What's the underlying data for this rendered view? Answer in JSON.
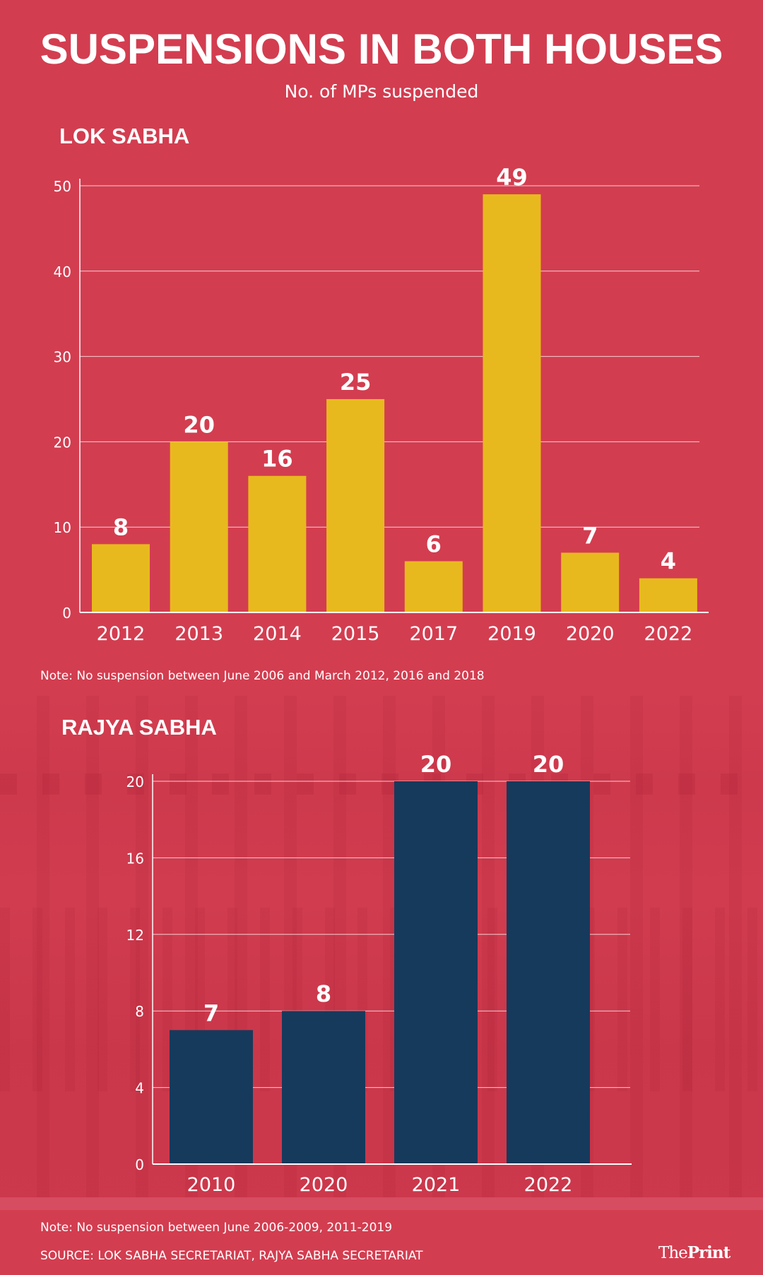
{
  "title": "SUSPENSIONS IN BOTH HOUSES",
  "subtitle": "No. of MPs suspended",
  "colors": {
    "background": "#D33D50",
    "lok_sabha_bar": "#E8B91E",
    "rajya_sabha_bar": "#163A5C",
    "text": "#FFFFFF"
  },
  "lok_sabha": {
    "heading": "LOK SABHA",
    "note": "Note: No suspension between June 2006 and March 2012, 2016 and 2018"
  },
  "rajya_sabha": {
    "heading": "RAJYA SABHA",
    "note": "Note: No suspension between June 2006-2009, 2011-2019"
  },
  "source": "SOURCE: LOK SABHA SECRETARIAT, RAJYA SABHA SECRETARIAT",
  "logo": {
    "part1": "The",
    "part2": "Print"
  },
  "chart_data": [
    {
      "type": "bar",
      "title": "LOK SABHA",
      "xlabel": "",
      "ylabel": "No. of MPs suspended",
      "categories": [
        "2012",
        "2013",
        "2014",
        "2015",
        "2017",
        "2019",
        "2020",
        "2022"
      ],
      "values": [
        8,
        20,
        16,
        25,
        6,
        49,
        7,
        4
      ],
      "ylim": [
        0,
        50
      ],
      "yticks": [
        0,
        10,
        20,
        30,
        40,
        50
      ],
      "grid": true,
      "data_labels": true,
      "color": "#E8B91E"
    },
    {
      "type": "bar",
      "title": "RAJYA SABHA",
      "xlabel": "",
      "ylabel": "No. of MPs suspended",
      "categories": [
        "2010",
        "2020",
        "2021",
        "2022"
      ],
      "values": [
        7,
        8,
        20,
        20
      ],
      "ylim": [
        0,
        20
      ],
      "yticks": [
        0,
        4,
        8,
        12,
        16,
        20
      ],
      "grid": true,
      "data_labels": true,
      "color": "#163A5C"
    }
  ]
}
